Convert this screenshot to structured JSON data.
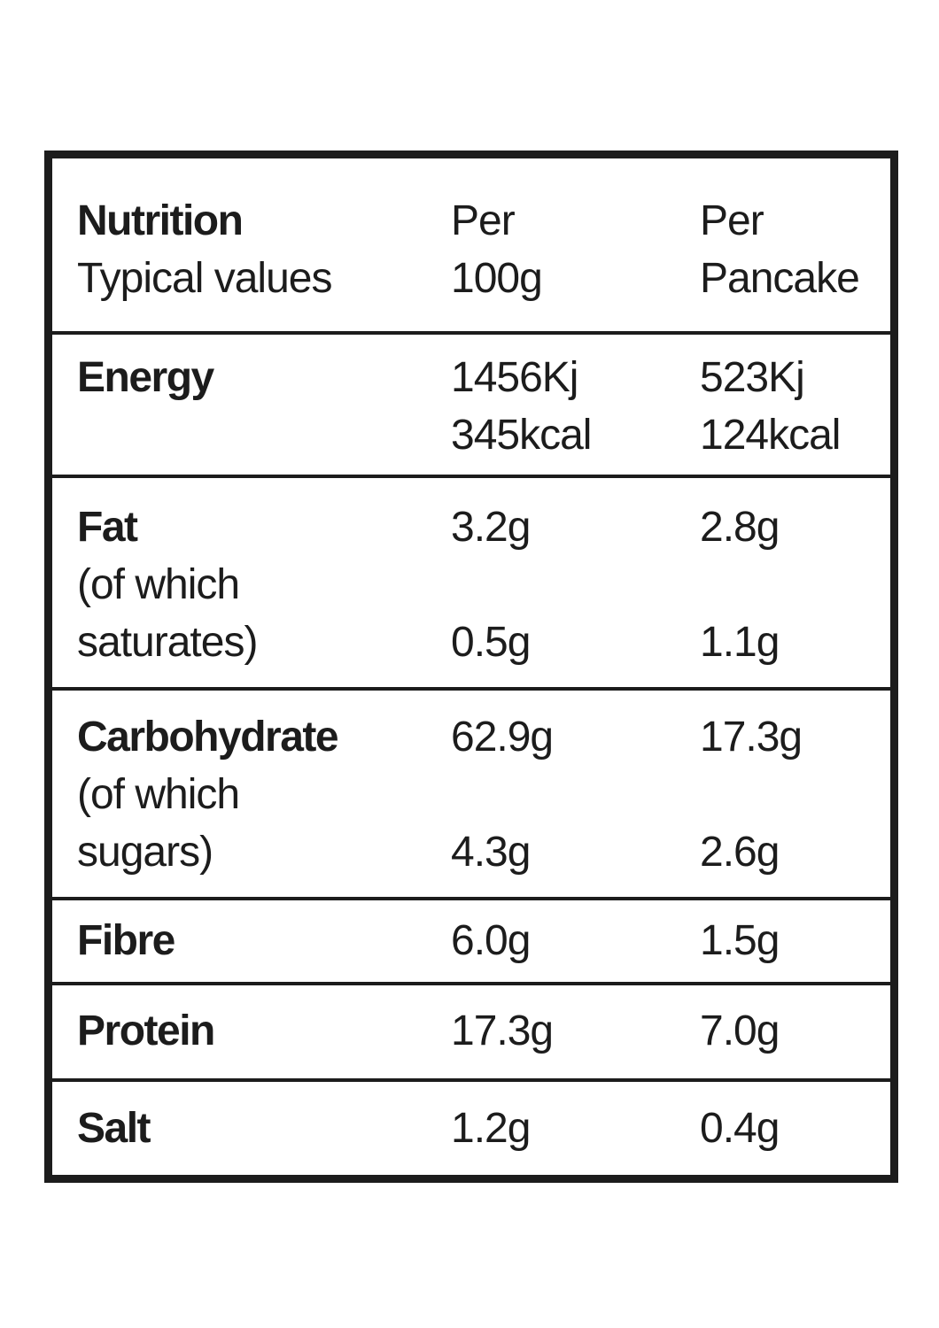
{
  "header": {
    "title": "Nutrition",
    "subtitle": "Typical values",
    "col_per100_line1": "Per",
    "col_per100_line2": "100g",
    "col_perpancake_line1": "Per",
    "col_perpancake_line2": "Pancake"
  },
  "energy": {
    "label": "Energy",
    "per100_kj": "1456Kj",
    "per100_kcal": "345kcal",
    "perpancake_kj": "523Kj",
    "perpancake_kcal": "124kcal"
  },
  "fat": {
    "label": "Fat",
    "sub_line1": "(of which",
    "sub_line2": "saturates)",
    "per100": "3.2g",
    "per100_sub": "0.5g",
    "perpancake": "2.8g",
    "perpancake_sub": "1.1g"
  },
  "carbohydrate": {
    "label": "Carbohydrate",
    "sub_line1": "(of which",
    "sub_line2": "sugars)",
    "per100": "62.9g",
    "per100_sub": "4.3g",
    "perpancake": "17.3g",
    "perpancake_sub": "2.6g"
  },
  "fibre": {
    "label": "Fibre",
    "per100": "6.0g",
    "perpancake": "1.5g"
  },
  "protein": {
    "label": "Protein",
    "per100": "17.3g",
    "perpancake": "7.0g"
  },
  "salt": {
    "label": "Salt",
    "per100": "1.2g",
    "perpancake": "0.4g"
  }
}
